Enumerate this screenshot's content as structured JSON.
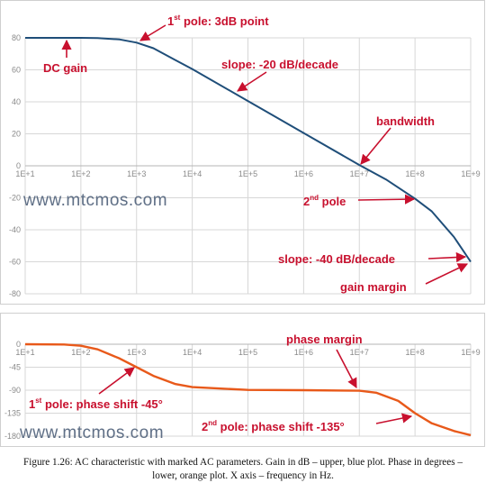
{
  "chart_data": [
    {
      "type": "line",
      "x_scale": "log",
      "xlim": [
        10,
        1000000000
      ],
      "ylim": [
        -80,
        80
      ],
      "x_tick_labels": [
        "1E+1",
        "1E+2",
        "1E+3",
        "1E+4",
        "1E+5",
        "1E+6",
        "1E+7",
        "1E+8",
        "1E+9"
      ],
      "y_ticks": [
        80,
        60,
        40,
        20,
        0,
        -20,
        -40,
        -60,
        -80
      ],
      "y_tick_labels": [
        "80",
        "60",
        "40",
        "20",
        "0",
        "-20",
        "-40",
        "-60",
        "-80"
      ],
      "grid": true,
      "series": [
        {
          "color": "#1f4e79",
          "x": [
            10,
            100,
            200,
            500,
            1000,
            2000,
            5000,
            10000,
            100000,
            1000000,
            10000000,
            30000000,
            100000000,
            200000000,
            500000000,
            1000000000
          ],
          "y": [
            80,
            80,
            79.9,
            79,
            77,
            73.5,
            66,
            60.5,
            40.5,
            20.5,
            0.5,
            -8.5,
            -20.5,
            -28.5,
            -44.5,
            -60
          ]
        }
      ],
      "annotations": [
        {
          "text": "1",
          "sup": "st",
          "rest": " pole: 3dB point"
        },
        {
          "text": "DC gain"
        },
        {
          "text": "slope: -20 dB/decade"
        },
        {
          "text": "bandwidth"
        },
        {
          "text": "2",
          "sup": "nd",
          "rest": " pole"
        },
        {
          "text": "slope: -40 dB/decade"
        },
        {
          "text": "gain margin"
        }
      ]
    },
    {
      "type": "line",
      "x_scale": "log",
      "xlim": [
        10,
        1000000000
      ],
      "ylim": [
        -180,
        0
      ],
      "x_tick_labels": [
        "1E+1",
        "1E+2",
        "1E+3",
        "1E+4",
        "1E+5",
        "1E+6",
        "1E+7",
        "1E+8",
        "1E+9"
      ],
      "y_ticks": [
        0,
        -45,
        -90,
        -135,
        -180
      ],
      "y_tick_labels": [
        "0",
        "-45",
        "-90",
        "-135",
        "-180"
      ],
      "grid": true,
      "series": [
        {
          "color": "#e8591a",
          "x": [
            10,
            50,
            100,
            200,
            500,
            1000,
            2000,
            5000,
            10000,
            100000,
            1000000,
            10000000,
            20000000,
            50000000,
            100000000,
            200000000,
            500000000,
            1000000000
          ],
          "y": [
            0,
            -0.5,
            -3,
            -10,
            -28,
            -45,
            -62,
            -78,
            -84,
            -89.5,
            -90,
            -91,
            -95,
            -111,
            -135,
            -155,
            -170,
            -178
          ]
        }
      ],
      "annotations": [
        {
          "text": "phase margin"
        },
        {
          "text": "1",
          "sup": "st",
          "rest": " pole: phase shift -45°"
        },
        {
          "text": "2",
          "sup": "nd",
          "rest": " pole: phase shift -135°"
        }
      ]
    }
  ],
  "watermark": "www.mtcmos.com",
  "caption": "Figure 1.26: AC characteristic with marked AC parameters. Gain in dB – upper, blue plot. Phase in degrees – lower, orange plot. X axis – frequency in Hz."
}
